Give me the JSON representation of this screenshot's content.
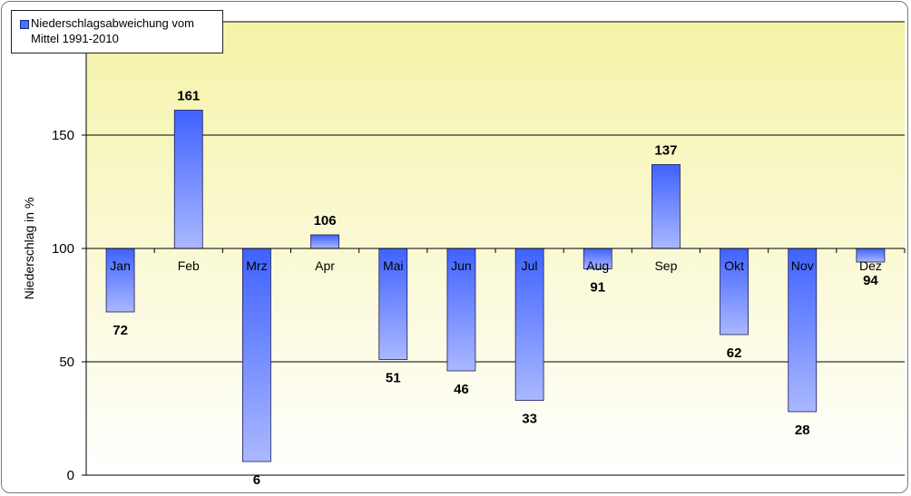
{
  "chart_data": {
    "type": "bar",
    "baseline": 100,
    "categories": [
      "Jan",
      "Feb",
      "Mrz",
      "Apr",
      "Mai",
      "Jun",
      "Jul",
      "Aug",
      "Sep",
      "Okt",
      "Nov",
      "Dez"
    ],
    "series": [
      {
        "name": "Niederschlagsabweichung vom Mittel 1991-2010",
        "values": [
          72,
          161,
          6,
          106,
          51,
          46,
          33,
          91,
          137,
          62,
          28,
          94
        ]
      }
    ],
    "ylabel": "Niederschlag in %",
    "yticks": [
      0,
      50,
      100,
      150
    ],
    "ylim": [
      0,
      200
    ],
    "grid": true,
    "legend_position": "top-left",
    "colors": {
      "bar_top": "#3f62ff",
      "bar_bottom": "#aab8ff",
      "plot_top": "#f5f3a8",
      "plot_bottom": "#ffffff"
    }
  }
}
